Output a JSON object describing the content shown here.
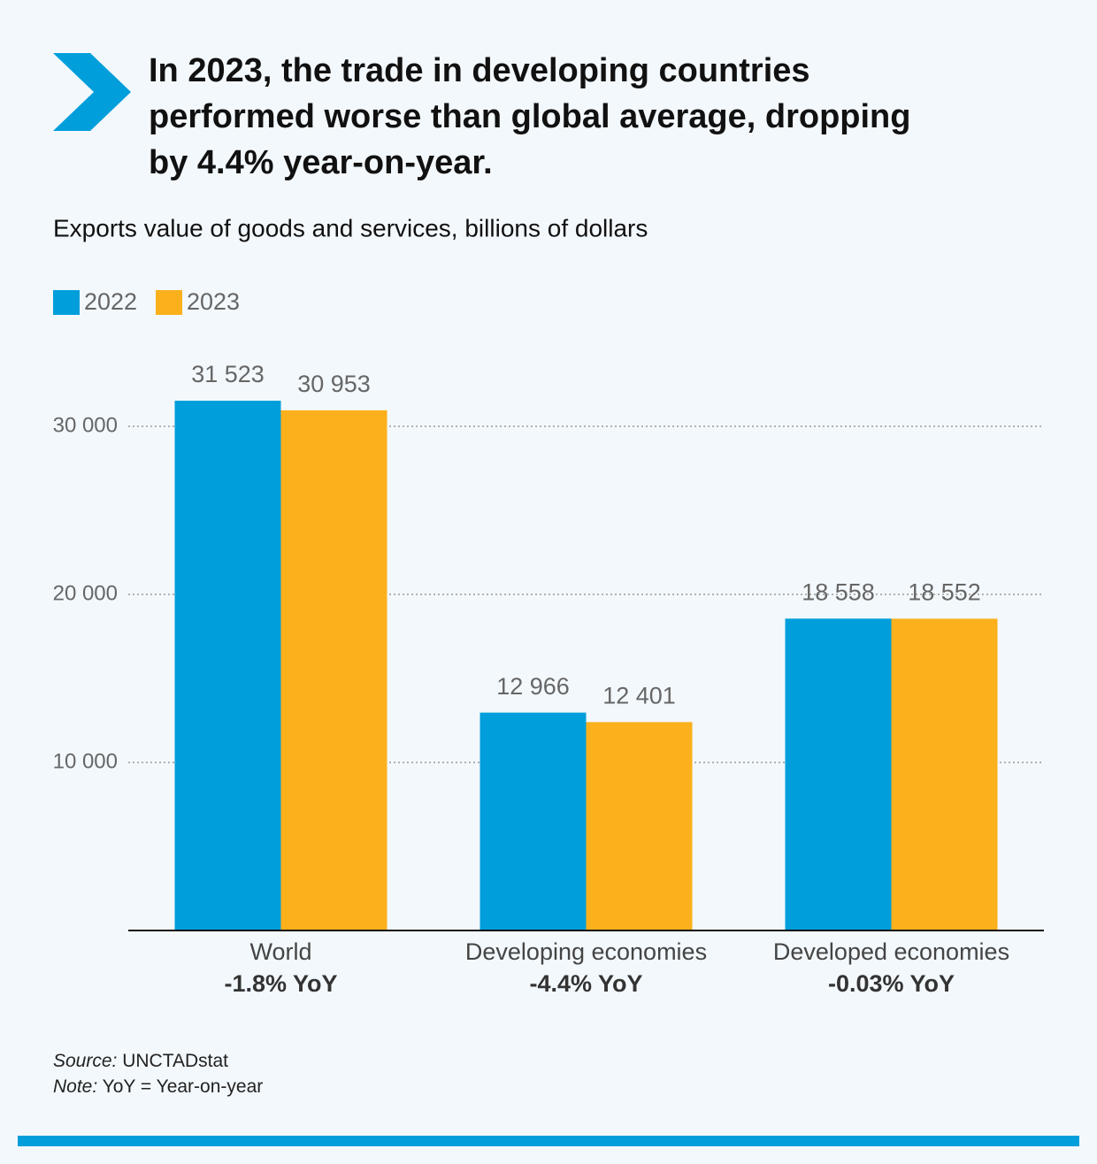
{
  "chart_data": {
    "type": "bar",
    "title_lines": [
      "In 2023, the trade in developing countries",
      "performed worse than global average, dropping",
      "by 4.4% year-on-year."
    ],
    "subtitle": "Exports value of goods and services, billions of dollars",
    "categories": [
      "World",
      "Developing economies",
      "Developed economies"
    ],
    "category_notes": [
      "-1.8% YoY",
      "-4.4% YoY",
      "-0.03% YoY"
    ],
    "series": [
      {
        "name": "2022",
        "color": "#009edb",
        "values": [
          31523,
          12966,
          18558
        ],
        "value_labels": [
          "31 523",
          "12 966",
          "18 558"
        ]
      },
      {
        "name": "2023",
        "color": "#fbb01c",
        "values": [
          30953,
          12401,
          18552
        ],
        "value_labels": [
          "30 953",
          "12 401",
          "18 552"
        ]
      }
    ],
    "ylim": [
      0,
      35000
    ],
    "yticks": [
      {
        "value": 10000,
        "label": "10 000"
      },
      {
        "value": 20000,
        "label": "20 000"
      },
      {
        "value": 30000,
        "label": "30 000"
      }
    ],
    "grid": true,
    "source_label": "Source:",
    "source": "UNCTADstat",
    "note_label": "Note:",
    "note": "YoY = Year-on-year"
  }
}
